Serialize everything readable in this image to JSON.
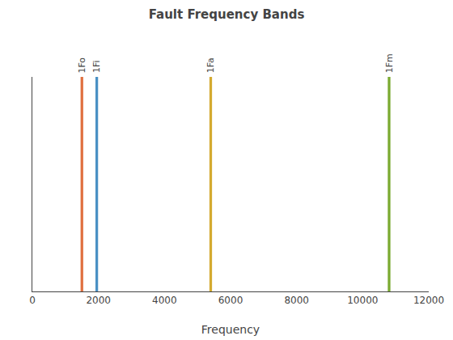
{
  "chart_data": {
    "type": "bar",
    "title": "Fault Frequency Bands",
    "x_label": "Frequency",
    "x": [
      1500,
      1950,
      5400,
      10800
    ],
    "values": [
      1.0,
      1.0,
      1.0,
      1.0
    ],
    "annotations": [
      "1Fo",
      "1Fi",
      "1Fa",
      "1Fm"
    ],
    "colors": [
      "#E07040",
      "#4A90C4",
      "#D4AA30",
      "#7AAA30"
    ],
    "xlim": [
      0,
      12000
    ],
    "xticks": [
      0,
      2000,
      4000,
      6000,
      8000,
      10000,
      12000
    ],
    "ylim": [
      0,
      1
    ],
    "tick_labels": "x",
    "grid": false
  }
}
